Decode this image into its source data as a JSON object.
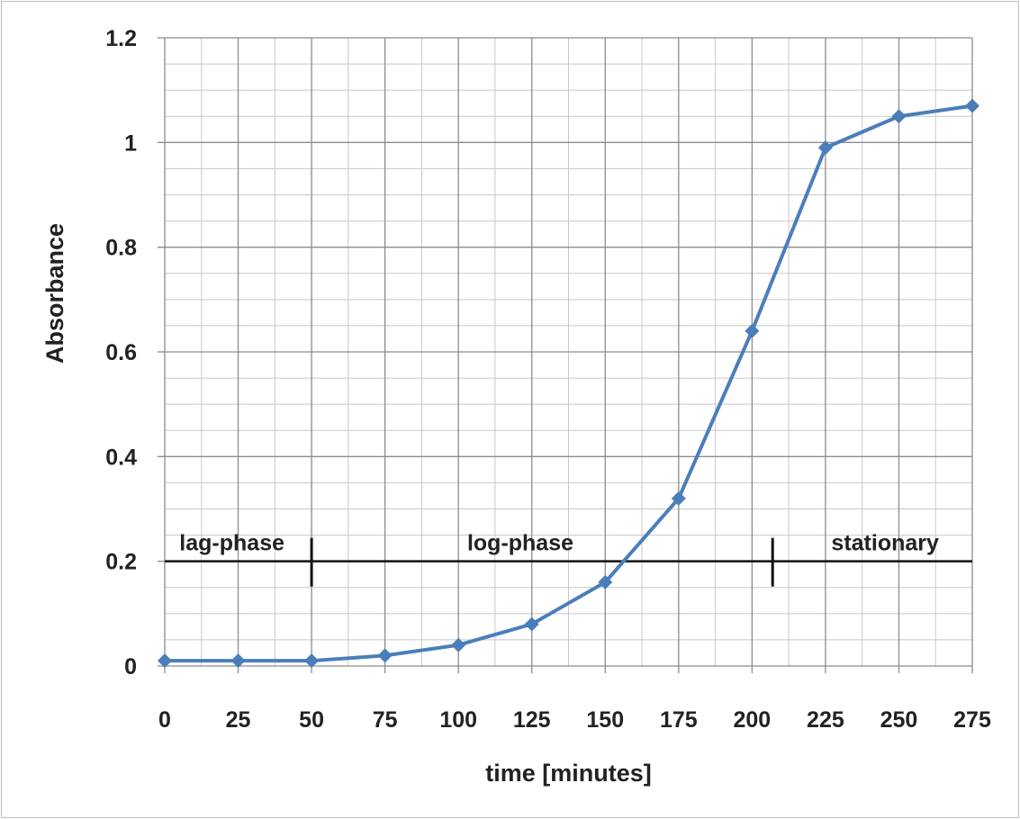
{
  "chart_data": {
    "type": "line",
    "title": "",
    "xlabel": "time [minutes]",
    "ylabel": "Absorbance",
    "x": [
      0,
      25,
      50,
      75,
      100,
      125,
      150,
      175,
      200,
      225,
      250,
      275
    ],
    "series": [
      {
        "values": [
          0.01,
          0.01,
          0.01,
          0.02,
          0.04,
          0.08,
          0.16,
          0.32,
          0.64,
          0.99,
          1.05,
          1.07
        ]
      }
    ],
    "xlim": [
      0,
      275
    ],
    "ylim": [
      0,
      1.2
    ],
    "x_ticks": [
      "0",
      "25",
      "50",
      "75",
      "100",
      "125",
      "150",
      "175",
      "200",
      "225",
      "250",
      "275"
    ],
    "y_ticks": [
      "0",
      "0.2",
      "0.4",
      "0.6",
      "0.8",
      "1",
      "1.2"
    ],
    "grid": true,
    "series_color": "#4a7ebb",
    "annotations": {
      "phase_line_y": 0.2,
      "phase_boundaries_x": [
        50,
        207
      ],
      "labels": [
        {
          "text": "lag-phase",
          "x": 5
        },
        {
          "text": "log-phase",
          "x": 103
        },
        {
          "text": "stationary",
          "x": 227
        }
      ]
    }
  }
}
